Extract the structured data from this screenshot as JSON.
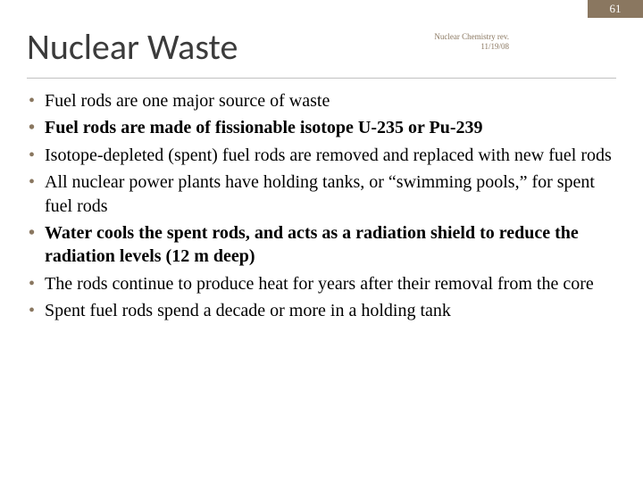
{
  "page_number": "61",
  "title": "Nuclear Waste",
  "subtitle_line1": "Nuclear Chemistry  rev.",
  "subtitle_line2": "11/19/08",
  "colors": {
    "accent": "#8a7760",
    "title_text": "#3b3b3b",
    "body_text": "#000000",
    "divider": "#c0c0c0",
    "background": "#ffffff"
  },
  "bullets": [
    {
      "text": "Fuel rods are one major source of waste",
      "bold": false
    },
    {
      "text": "Fuel rods are made of fissionable isotope U-235 or Pu-239",
      "bold": true
    },
    {
      "text": "Isotope-depleted (spent) fuel rods are removed and replaced with new fuel rods",
      "bold": false
    },
    {
      "text": "All nuclear power plants have holding tanks, or “swimming pools,” for spent fuel rods",
      "bold": false
    },
    {
      "text": "Water cools the spent rods, and acts as a radiation shield to reduce the radiation levels (12 m deep)",
      "bold": true
    },
    {
      "text": "The rods continue to produce heat for years after their removal from the core",
      "bold": false
    },
    {
      "text": "Spent fuel rods spend a decade or more in a holding tank",
      "bold": false
    }
  ]
}
